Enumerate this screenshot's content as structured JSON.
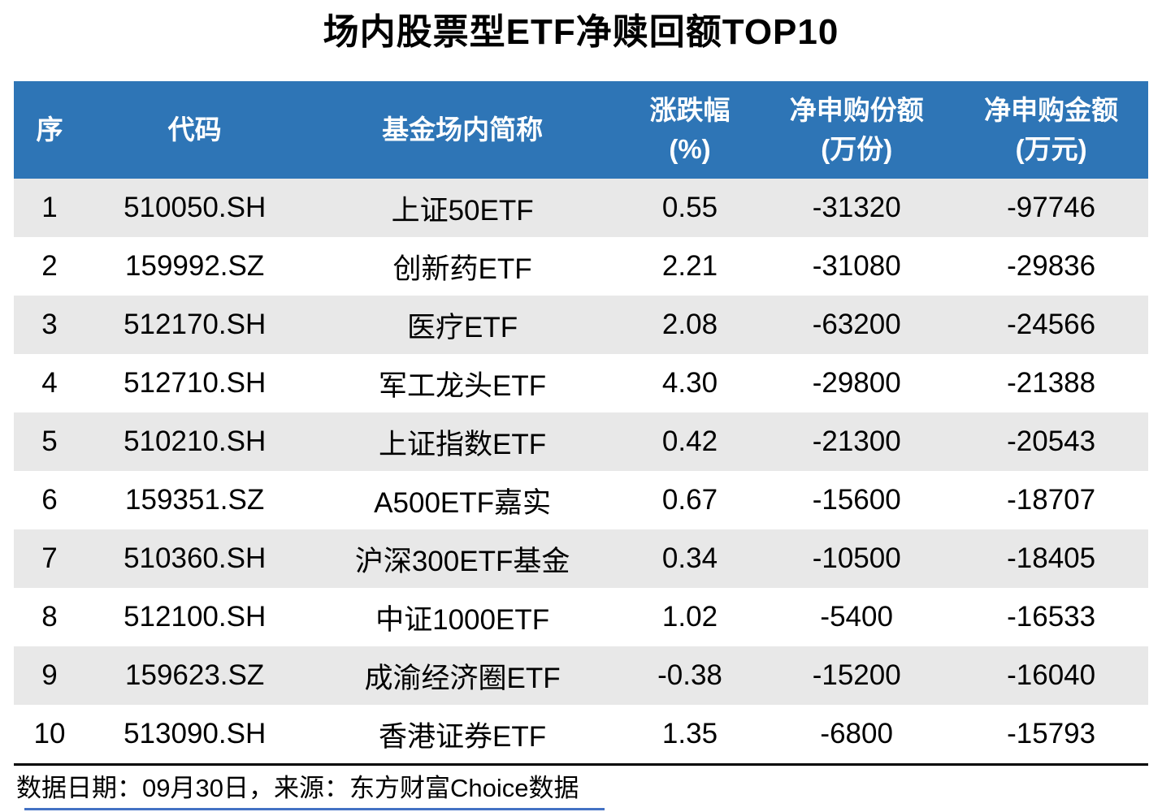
{
  "page": {
    "title": "场内股票型ETF净赎回额TOP10"
  },
  "colors": {
    "header_bg": "#2E75B6",
    "header_text": "#FFFFFF",
    "row_stripe": "#E8E8E8",
    "body_text": "#000000",
    "footer_rule_black": "#000000",
    "bottom_rule_blue": "#4472C4"
  },
  "table": {
    "headers": [
      {
        "line1": "序",
        "line2": ""
      },
      {
        "line1": "代码",
        "line2": ""
      },
      {
        "line1": "基金场内简称",
        "line2": ""
      },
      {
        "line1": "涨跌幅",
        "line2": "(%)"
      },
      {
        "line1": "净申购份额",
        "line2": "(万份)"
      },
      {
        "line1": "净申购金额",
        "line2": "(万元)"
      }
    ],
    "rows": [
      [
        "1",
        "510050.SH",
        "上证50ETF",
        "0.55",
        "-31320",
        "-97746"
      ],
      [
        "2",
        "159992.SZ",
        "创新药ETF",
        "2.21",
        "-31080",
        "-29836"
      ],
      [
        "3",
        "512170.SH",
        "医疗ETF",
        "2.08",
        "-63200",
        "-24566"
      ],
      [
        "4",
        "512710.SH",
        "军工龙头ETF",
        "4.30",
        "-29800",
        "-21388"
      ],
      [
        "5",
        "510210.SH",
        "上证指数ETF",
        "0.42",
        "-21300",
        "-20543"
      ],
      [
        "6",
        "159351.SZ",
        "A500ETF嘉实",
        "0.67",
        "-15600",
        "-18707"
      ],
      [
        "7",
        "510360.SH",
        "沪深300ETF基金",
        "0.34",
        "-10500",
        "-18405"
      ],
      [
        "8",
        "512100.SH",
        "中证1000ETF",
        "1.02",
        "-5400",
        "-16533"
      ],
      [
        "9",
        "159623.SZ",
        "成渝经济圈ETF",
        "-0.38",
        "-15200",
        "-16040"
      ],
      [
        "10",
        "513090.SH",
        "香港证券ETF",
        "1.35",
        "-6800",
        "-15793"
      ]
    ]
  },
  "footer": {
    "note": "数据日期：09月30日，来源：东方财富Choice数据"
  },
  "chart_data": {
    "type": "table",
    "title": "场内股票型ETF净赎回额TOP10",
    "columns": [
      "序",
      "代码",
      "基金场内简称",
      "涨跌幅(%)",
      "净申购份额(万份)",
      "净申购金额(万元)"
    ],
    "rows": [
      [
        1,
        "510050.SH",
        "上证50ETF",
        0.55,
        -31320,
        -97746
      ],
      [
        2,
        "159992.SZ",
        "创新药ETF",
        2.21,
        -31080,
        -29836
      ],
      [
        3,
        "512170.SH",
        "医疗ETF",
        2.08,
        -63200,
        -24566
      ],
      [
        4,
        "512710.SH",
        "军工龙头ETF",
        4.3,
        -29800,
        -21388
      ],
      [
        5,
        "510210.SH",
        "上证指数ETF",
        0.42,
        -21300,
        -20543
      ],
      [
        6,
        "159351.SZ",
        "A500ETF嘉实",
        0.67,
        -15600,
        -18707
      ],
      [
        7,
        "510360.SH",
        "沪深300ETF基金",
        0.34,
        -10500,
        -18405
      ],
      [
        8,
        "512100.SH",
        "中证1000ETF",
        1.02,
        -5400,
        -16533
      ],
      [
        9,
        "159623.SZ",
        "成渝经济圈ETF",
        -0.38,
        -15200,
        -16040
      ],
      [
        10,
        "513090.SH",
        "香港证券ETF",
        1.35,
        -6800,
        -15793
      ]
    ],
    "source_note": "数据日期：09月30日，来源：东方财富Choice数据"
  }
}
